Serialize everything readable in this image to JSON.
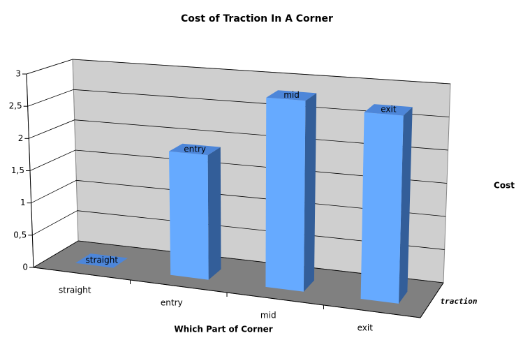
{
  "chart_data": {
    "type": "bar3d",
    "title": "Cost of Traction In A Corner",
    "xlabel": "Which Part of Corner",
    "ylabel": "Cost",
    "categories": [
      "straight",
      "entry",
      "mid",
      "exit"
    ],
    "series": [
      {
        "name": "traction",
        "color": "#66aaff",
        "values": [
          0,
          1.9,
          2.85,
          2.75
        ]
      }
    ],
    "ylim": [
      0,
      3
    ],
    "yticks": [
      0,
      {
        "value": 0.5,
        "label": "0,5"
      },
      1,
      {
        "value": 1.5,
        "label": "1,5"
      },
      2,
      {
        "value": 2.5,
        "label": "2,5"
      },
      3
    ],
    "grid": true
  }
}
